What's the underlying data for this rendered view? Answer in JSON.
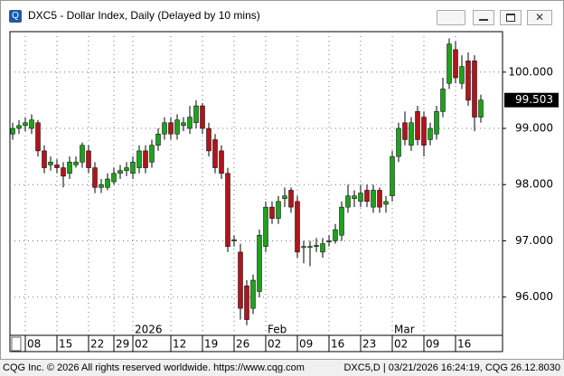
{
  "window_title": "DXC5 - Dollar Index, Daily (Delayed by 10 mins)",
  "footer_left": "CQG Inc. © 2026 All rights reserved worldwide. https://www.cqg.com",
  "footer_right": "DXC5,D | 03/21/2026 16:24:19, CQG 26.12.8030",
  "chart_data": {
    "type": "candlestick",
    "categories": [
      null,
      null,
      "08",
      null,
      null,
      null,
      null,
      "15",
      null,
      null,
      null,
      null,
      "22",
      null,
      null,
      null,
      "29",
      null,
      null,
      "02",
      null,
      null,
      null,
      null,
      null,
      "12",
      null,
      null,
      null,
      null,
      "19",
      null,
      null,
      null,
      null,
      "26",
      null,
      null,
      null,
      null,
      "02",
      null,
      null,
      null,
      null,
      "09",
      null,
      null,
      null,
      null,
      "16",
      null,
      null,
      null,
      null,
      "23",
      null,
      null,
      null,
      null,
      "02",
      null,
      null,
      null,
      null,
      "09",
      null,
      null,
      null,
      null,
      "16",
      null,
      null,
      null,
      null
    ],
    "period_labels": [
      null,
      null,
      null,
      null,
      null,
      null,
      null,
      null,
      null,
      null,
      null,
      null,
      null,
      null,
      null,
      null,
      null,
      null,
      null,
      "2026",
      null,
      null,
      null,
      null,
      null,
      null,
      null,
      null,
      null,
      null,
      null,
      null,
      null,
      null,
      null,
      null,
      null,
      null,
      null,
      null,
      "Feb",
      null,
      null,
      null,
      null,
      null,
      null,
      null,
      null,
      null,
      null,
      null,
      null,
      null,
      null,
      null,
      null,
      null,
      null,
      null,
      "Mar",
      null,
      null,
      null,
      null,
      null,
      null,
      null,
      null,
      null,
      null,
      null,
      null,
      null,
      null
    ],
    "open": [
      98.9,
      99.0,
      99.05,
      99.0,
      99.1,
      98.6,
      98.35,
      98.35,
      98.3,
      98.2,
      98.35,
      98.4,
      98.6,
      98.3,
      97.95,
      97.95,
      98.05,
      98.2,
      98.25,
      98.2,
      98.3,
      98.6,
      98.4,
      98.7,
      98.9,
      99.1,
      98.9,
      99.05,
      99.0,
      99.1,
      99.4,
      99.0,
      98.8,
      98.6,
      98.2,
      97.0,
      96.8,
      96.2,
      95.8,
      96.1,
      96.9,
      97.6,
      97.4,
      97.75,
      97.9,
      97.7,
      96.88,
      96.9,
      96.9,
      96.8,
      96.98,
      97.0,
      97.1,
      97.6,
      97.75,
      97.7,
      97.9,
      97.6,
      97.9,
      97.65,
      97.8,
      98.5,
      99.1,
      98.7,
      99.3,
      99.2,
      98.8,
      98.9,
      99.3,
      99.8,
      100.4,
      99.8,
      100.2,
      100.2,
      99.2
    ],
    "high": [
      99.1,
      99.15,
      99.2,
      99.25,
      99.15,
      98.7,
      98.5,
      98.45,
      98.4,
      98.5,
      98.5,
      98.75,
      98.7,
      98.4,
      98.1,
      98.2,
      98.3,
      98.35,
      98.4,
      98.5,
      98.7,
      98.7,
      98.8,
      99.0,
      99.2,
      99.2,
      99.25,
      99.2,
      99.4,
      99.5,
      99.45,
      99.1,
      98.9,
      98.7,
      98.3,
      97.1,
      96.95,
      96.3,
      96.4,
      97.2,
      97.7,
      97.7,
      97.8,
      97.95,
      97.95,
      97.8,
      97.0,
      97.0,
      97.05,
      97.05,
      97.1,
      97.3,
      97.7,
      98.0,
      97.9,
      98.0,
      98.0,
      98.0,
      97.95,
      97.8,
      98.6,
      99.1,
      99.3,
      99.2,
      99.4,
      99.3,
      99.1,
      99.4,
      99.9,
      100.6,
      100.55,
      100.3,
      100.35,
      100.3,
      99.6
    ],
    "low": [
      98.8,
      98.9,
      98.95,
      98.9,
      98.5,
      98.2,
      98.25,
      98.2,
      97.95,
      98.1,
      98.3,
      98.3,
      98.2,
      97.85,
      97.85,
      97.9,
      98.0,
      98.1,
      98.15,
      98.1,
      98.2,
      98.2,
      98.3,
      98.6,
      98.8,
      98.8,
      98.8,
      98.95,
      98.9,
      99.0,
      98.9,
      98.5,
      98.2,
      98.1,
      96.8,
      96.9,
      95.6,
      95.5,
      95.7,
      96.0,
      96.8,
      97.3,
      97.3,
      97.6,
      97.5,
      96.7,
      96.6,
      96.55,
      96.8,
      96.7,
      96.9,
      96.95,
      97.0,
      97.5,
      97.6,
      97.6,
      97.6,
      97.5,
      97.5,
      97.5,
      97.7,
      98.4,
      98.7,
      98.6,
      98.7,
      98.5,
      98.7,
      98.8,
      99.2,
      99.7,
      99.8,
      99.7,
      99.4,
      98.95,
      99.1
    ],
    "close": [
      99.0,
      99.05,
      99.1,
      99.15,
      98.6,
      98.3,
      98.4,
      98.3,
      98.15,
      98.4,
      98.4,
      98.7,
      98.3,
      97.95,
      98.0,
      98.1,
      98.2,
      98.25,
      98.3,
      98.4,
      98.6,
      98.3,
      98.7,
      98.9,
      99.1,
      98.9,
      99.15,
      99.1,
      99.2,
      99.4,
      99.0,
      98.6,
      98.3,
      98.2,
      96.9,
      97.02,
      95.8,
      95.6,
      96.3,
      97.1,
      97.6,
      97.4,
      97.7,
      97.8,
      97.6,
      96.8,
      96.9,
      96.9,
      96.92,
      96.95,
      97.0,
      97.2,
      97.6,
      97.8,
      97.8,
      97.85,
      97.7,
      97.9,
      97.6,
      97.7,
      98.5,
      99.0,
      98.8,
      99.1,
      98.8,
      98.7,
      99.0,
      99.3,
      99.7,
      100.5,
      99.9,
      100.1,
      99.5,
      99.2,
      99.503
    ],
    "up_color": "#1fa11f",
    "down_color": "#b0151c",
    "flat_color": "#1fa11f",
    "ylim": [
      95.32,
      100.72
    ],
    "yticks": [
      {
        "value": 96,
        "label": "96.000"
      },
      {
        "value": 97,
        "label": "97.000"
      },
      {
        "value": 98,
        "label": "98.000"
      },
      {
        "value": 99,
        "label": "99.000"
      },
      {
        "value": 100,
        "label": "100.000"
      }
    ],
    "last_price": {
      "value": 99.503,
      "label": "99.503"
    },
    "grid": true
  }
}
